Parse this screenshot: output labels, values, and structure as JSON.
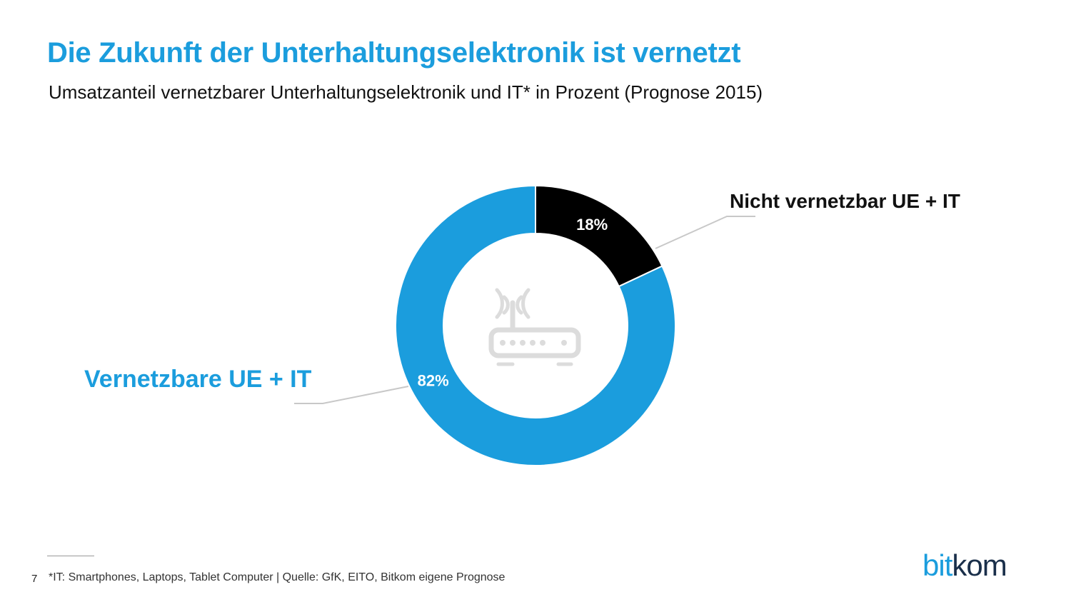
{
  "header": {
    "title": "Die Zukunft der Unterhaltungselektronik ist vernetzt",
    "subtitle": "Umsatzanteil vernetzbarer Unterhaltungselektronik und IT* in Prozent (Prognose 2015)"
  },
  "chart_data": {
    "type": "pie",
    "variant": "donut",
    "title": "",
    "categories": [
      "Nicht vernetzbar UE + IT",
      "Vernetzbare UE + IT"
    ],
    "values": [
      18,
      82
    ],
    "value_labels": [
      "18%",
      "82%"
    ],
    "unit": "%",
    "colors": [
      "#000000",
      "#1b9ddd"
    ],
    "label_colors": [
      "#111111",
      "#1b9ddd"
    ],
    "center_icon": "wifi-router-icon"
  },
  "footer": {
    "page_number": "7",
    "footnote": "*IT: Smartphones, Laptops, Tablet Computer | Quelle: GfK, EITO, Bitkom eigene Prognose",
    "logo_part1": "bit",
    "logo_part2": "kom"
  }
}
